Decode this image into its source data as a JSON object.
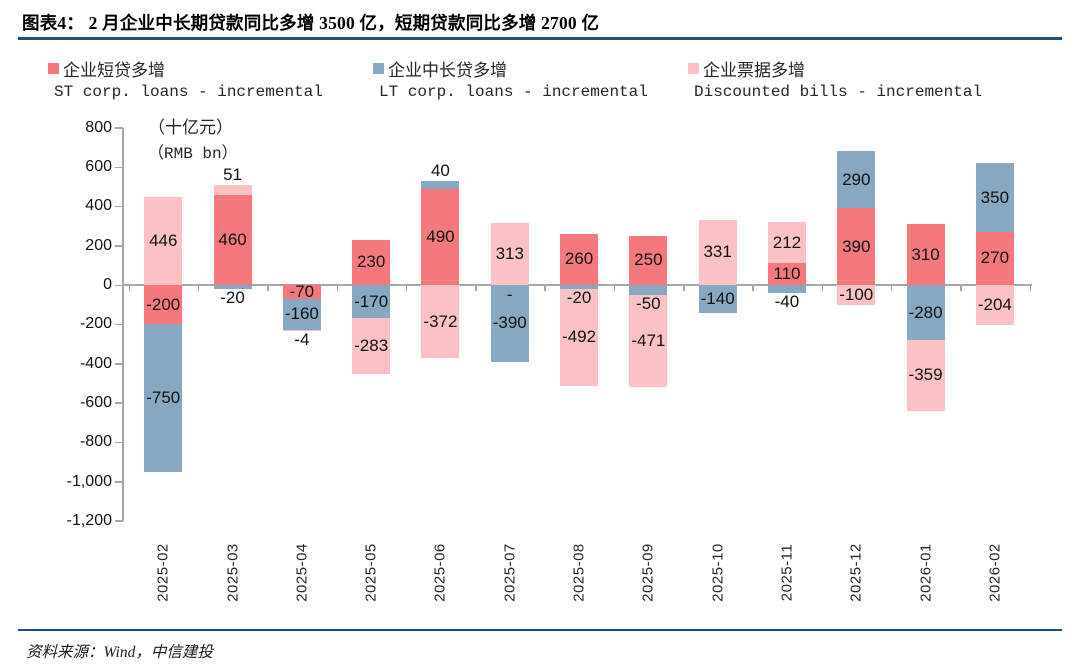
{
  "title": "图表4：  2 月企业中长期贷款同比多增 3500 亿，短期贷款同比多增 2700 亿",
  "footer": {
    "source": "资料来源：Wind，中信建投"
  },
  "colors": {
    "rule_navy": "#1F4E79",
    "axis_gray": "#A6A6A6",
    "st_red": "#F4797E",
    "lt_blue": "#87A8C0",
    "bills_pink": "#FBC2C6"
  },
  "chart_data": {
    "type": "bar",
    "stacked": true,
    "unit_cn": "（十亿元）",
    "unit_en": "（RMB bn）",
    "legend_position": "top",
    "ylim": [
      -1200,
      800
    ],
    "ytick_values": [
      800,
      600,
      400,
      200,
      0,
      -200,
      -400,
      -600,
      -800,
      -1000,
      -1200
    ],
    "ytick_labels": [
      "800",
      "600",
      "400",
      "200",
      "0",
      "-200",
      "-400",
      "-600",
      "-800",
      "-1,000",
      "-1,200"
    ],
    "categories": [
      "2025-02",
      "2025-03",
      "2025-04",
      "2025-05",
      "2025-06",
      "2025-07",
      "2025-08",
      "2025-09",
      "2025-10",
      "2025-11",
      "2025-12",
      "2026-01",
      "2026-02"
    ],
    "series": [
      {
        "name": "企业短贷多增",
        "name_en": "ST corp. loans - incremental",
        "color": "#F4797E",
        "values": [
          -200,
          460,
          -70,
          230,
          490,
          0,
          260,
          250,
          0,
          110,
          390,
          310,
          270
        ],
        "labels": [
          "-200",
          "460",
          "-70",
          "230",
          "490",
          "-",
          "260",
          "250",
          "",
          "110",
          "390",
          "310",
          "270"
        ]
      },
      {
        "name": "企业中长贷多增",
        "name_en": "LT corp. loans - incremental",
        "color": "#87A8C0",
        "values": [
          -750,
          -20,
          -160,
          -170,
          40,
          -390,
          -20,
          -50,
          -140,
          -40,
          290,
          -280,
          350
        ],
        "labels": [
          "-750",
          "-20",
          "-160",
          "-170",
          "40",
          "-390",
          "-20",
          "-50",
          "-140",
          "-40",
          "290",
          "-280",
          "350"
        ]
      },
      {
        "name": "企业票据多增",
        "name_en": "Discounted bills - incremental",
        "color": "#FBC2C6",
        "values": [
          446,
          51,
          -4,
          -283,
          -372,
          313,
          -492,
          -471,
          331,
          212,
          -100,
          -359,
          -204
        ],
        "labels": [
          "446",
          "51",
          "-4",
          "-283",
          "-372",
          "313",
          "-492",
          "-471",
          "331",
          "212",
          "-100",
          "-359",
          "-204"
        ]
      }
    ]
  }
}
